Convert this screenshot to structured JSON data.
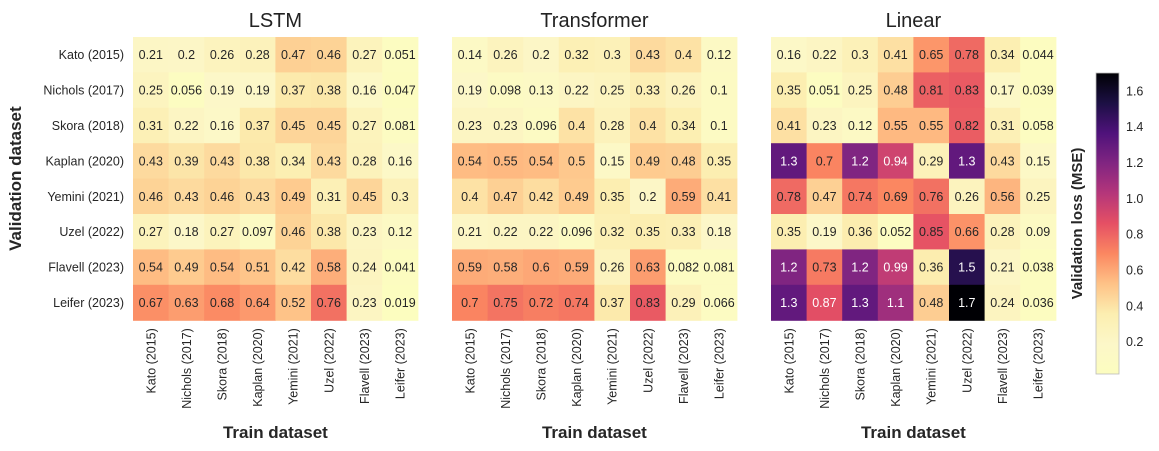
{
  "chart_data": {
    "type": "heatmap",
    "panels": [
      {
        "title": "LSTM",
        "xlabel": "Train dataset",
        "ylabel": "Validation dataset",
        "x_categories": [
          "Kato (2015)",
          "Nichols (2017)",
          "Skora (2018)",
          "Kaplan (2020)",
          "Yemini (2021)",
          "Uzel (2022)",
          "Flavell (2023)",
          "Leifer (2023)"
        ],
        "y_categories": [
          "Kato (2015)",
          "Nichols (2017)",
          "Skora (2018)",
          "Kaplan (2020)",
          "Yemini (2021)",
          "Uzel (2022)",
          "Flavell (2023)",
          "Leifer (2023)"
        ],
        "values": [
          [
            0.21,
            0.2,
            0.26,
            0.28,
            0.47,
            0.46,
            0.27,
            0.051
          ],
          [
            0.25,
            0.056,
            0.19,
            0.19,
            0.37,
            0.38,
            0.16,
            0.047
          ],
          [
            0.31,
            0.22,
            0.16,
            0.37,
            0.45,
            0.45,
            0.27,
            0.081
          ],
          [
            0.43,
            0.39,
            0.43,
            0.38,
            0.34,
            0.43,
            0.28,
            0.16
          ],
          [
            0.46,
            0.43,
            0.46,
            0.43,
            0.49,
            0.31,
            0.45,
            0.3
          ],
          [
            0.27,
            0.18,
            0.27,
            0.097,
            0.46,
            0.38,
            0.23,
            0.12
          ],
          [
            0.54,
            0.49,
            0.54,
            0.51,
            0.42,
            0.58,
            0.24,
            0.041
          ],
          [
            0.67,
            0.63,
            0.68,
            0.64,
            0.52,
            0.76,
            0.23,
            0.019
          ]
        ]
      },
      {
        "title": "Transformer",
        "xlabel": "Train dataset",
        "ylabel": "",
        "x_categories": [
          "Kato (2015)",
          "Nichols (2017)",
          "Skora (2018)",
          "Kaplan (2020)",
          "Yemini (2021)",
          "Uzel (2022)",
          "Flavell (2023)",
          "Leifer (2023)"
        ],
        "y_categories": [],
        "values": [
          [
            0.14,
            0.26,
            0.2,
            0.32,
            0.3,
            0.43,
            0.4,
            0.12
          ],
          [
            0.19,
            0.098,
            0.13,
            0.22,
            0.25,
            0.33,
            0.26,
            0.1
          ],
          [
            0.23,
            0.23,
            0.096,
            0.4,
            0.28,
            0.4,
            0.34,
            0.1
          ],
          [
            0.54,
            0.55,
            0.54,
            0.5,
            0.15,
            0.49,
            0.48,
            0.35
          ],
          [
            0.4,
            0.47,
            0.42,
            0.49,
            0.35,
            0.2,
            0.59,
            0.41
          ],
          [
            0.21,
            0.22,
            0.22,
            0.096,
            0.32,
            0.35,
            0.33,
            0.18
          ],
          [
            0.59,
            0.58,
            0.6,
            0.59,
            0.26,
            0.63,
            0.082,
            0.081
          ],
          [
            0.7,
            0.75,
            0.72,
            0.74,
            0.37,
            0.83,
            0.29,
            0.066
          ]
        ]
      },
      {
        "title": "Linear",
        "xlabel": "Train dataset",
        "ylabel": "",
        "x_categories": [
          "Kato (2015)",
          "Nichols (2017)",
          "Skora (2018)",
          "Kaplan (2020)",
          "Yemini (2021)",
          "Uzel (2022)",
          "Flavell (2023)",
          "Leifer (2023)"
        ],
        "y_categories": [],
        "values": [
          [
            0.16,
            0.22,
            0.3,
            0.41,
            0.65,
            0.78,
            0.34,
            0.044
          ],
          [
            0.35,
            0.051,
            0.25,
            0.48,
            0.81,
            0.83,
            0.17,
            0.039
          ],
          [
            0.41,
            0.23,
            0.12,
            0.55,
            0.55,
            0.82,
            0.31,
            0.058
          ],
          [
            1.3,
            0.7,
            1.2,
            0.94,
            0.29,
            1.3,
            0.43,
            0.15
          ],
          [
            0.78,
            0.47,
            0.74,
            0.69,
            0.76,
            0.26,
            0.56,
            0.25
          ],
          [
            0.35,
            0.19,
            0.36,
            0.052,
            0.85,
            0.66,
            0.28,
            0.09
          ],
          [
            1.2,
            0.73,
            1.2,
            0.99,
            0.36,
            1.5,
            0.21,
            0.038
          ],
          [
            1.3,
            0.87,
            1.3,
            1.1,
            0.48,
            1.7,
            0.24,
            0.036
          ]
        ]
      }
    ],
    "colorbar": {
      "label": "Validation loss (MSE)",
      "colormap": "magma_r",
      "min": 0.019,
      "max": 1.7,
      "ticks": [
        0.2,
        0.4,
        0.6,
        0.8,
        1.0,
        1.2,
        1.4,
        1.6
      ],
      "tick_labels": [
        "0.2",
        "0.4",
        "0.6",
        "0.8",
        "1.0",
        "1.2",
        "1.4",
        "1.6"
      ]
    },
    "grid": false,
    "legend": "colorbar-right"
  }
}
